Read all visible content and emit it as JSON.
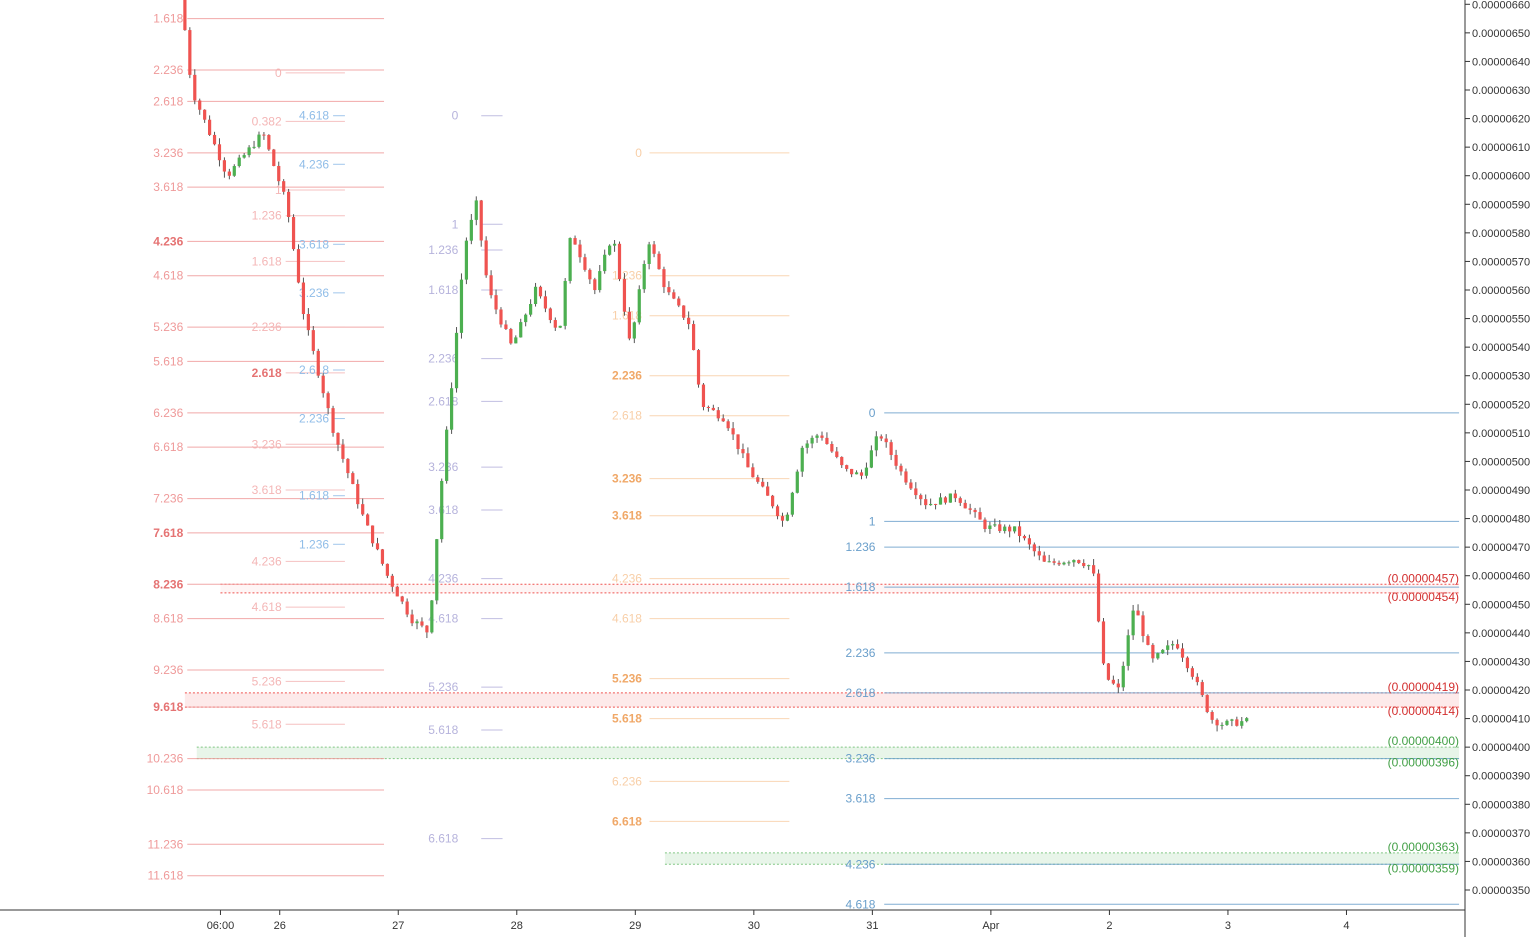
{
  "chart_data": {
    "type": "candlestick",
    "title": "",
    "y_axis": {
      "side": "right",
      "ticks": [
        "0.00000660",
        "0.00000650",
        "0.00000640",
        "0.00000630",
        "0.00000620",
        "0.00000610",
        "0.00000600",
        "0.00000590",
        "0.00000580",
        "0.00000570",
        "0.00000560",
        "0.00000550",
        "0.00000540",
        "0.00000530",
        "0.00000520",
        "0.00000510",
        "0.00000500",
        "0.00000490",
        "0.00000480",
        "0.00000470",
        "0.00000460",
        "0.00000450",
        "0.00000440",
        "0.00000430",
        "0.00000420",
        "0.00000410",
        "0.00000400",
        "0.00000390",
        "0.00000380",
        "0.00000370",
        "0.00000360",
        "0.00000350"
      ],
      "range": [
        3.43e-06,
        6.615e-06
      ]
    },
    "x_axis": {
      "ticks": [
        {
          "label": "06:00",
          "t": 25.5
        },
        {
          "label": "26",
          "t": 26
        },
        {
          "label": "27",
          "t": 27
        },
        {
          "label": "28",
          "t": 28
        },
        {
          "label": "29",
          "t": 29
        },
        {
          "label": "30",
          "t": 30
        },
        {
          "label": "31",
          "t": 31
        },
        {
          "label": "Apr",
          "t": 32
        },
        {
          "label": "2",
          "t": 33
        },
        {
          "label": "3",
          "t": 34
        },
        {
          "label": "4",
          "t": 35
        }
      ],
      "range": [
        23.64,
        36.0
      ]
    },
    "anchors": [
      {
        "t": 25.2,
        "p": 6.66e-06
      },
      {
        "t": 25.3,
        "p": 6.3e-06
      },
      {
        "t": 25.6,
        "p": 6e-06
      },
      {
        "t": 25.9,
        "p": 6.15e-06
      },
      {
        "t": 26.1,
        "p": 5.9e-06
      },
      {
        "t": 26.25,
        "p": 5.5e-06
      },
      {
        "t": 26.5,
        "p": 5.1e-06
      },
      {
        "t": 26.75,
        "p": 4.8e-06
      },
      {
        "t": 26.95,
        "p": 4.6e-06
      },
      {
        "t": 27.15,
        "p": 4.45e-06
      },
      {
        "t": 27.3,
        "p": 4.4e-06
      },
      {
        "t": 27.4,
        "p": 4.9e-06
      },
      {
        "t": 27.5,
        "p": 5.3e-06
      },
      {
        "t": 27.6,
        "p": 5.75e-06
      },
      {
        "t": 27.7,
        "p": 5.9e-06
      },
      {
        "t": 27.8,
        "p": 5.6e-06
      },
      {
        "t": 28.0,
        "p": 5.4e-06
      },
      {
        "t": 28.2,
        "p": 5.6e-06
      },
      {
        "t": 28.4,
        "p": 5.45e-06
      },
      {
        "t": 28.5,
        "p": 5.8e-06
      },
      {
        "t": 28.7,
        "p": 5.6e-06
      },
      {
        "t": 28.85,
        "p": 5.8e-06
      },
      {
        "t": 29.0,
        "p": 5.4e-06
      },
      {
        "t": 29.15,
        "p": 5.78e-06
      },
      {
        "t": 29.3,
        "p": 5.6e-06
      },
      {
        "t": 29.5,
        "p": 5.48e-06
      },
      {
        "t": 29.6,
        "p": 5.2e-06
      },
      {
        "t": 29.8,
        "p": 5.15e-06
      },
      {
        "t": 30.0,
        "p": 4.97e-06
      },
      {
        "t": 30.2,
        "p": 4.85e-06
      },
      {
        "t": 30.3,
        "p": 4.78e-06
      },
      {
        "t": 30.45,
        "p": 5.05e-06
      },
      {
        "t": 30.6,
        "p": 5.1e-06
      },
      {
        "t": 30.8,
        "p": 4.97e-06
      },
      {
        "t": 30.95,
        "p": 4.95e-06
      },
      {
        "t": 31.1,
        "p": 5.1e-06
      },
      {
        "t": 31.3,
        "p": 4.95e-06
      },
      {
        "t": 31.5,
        "p": 4.85e-06
      },
      {
        "t": 31.75,
        "p": 4.88e-06
      },
      {
        "t": 32.0,
        "p": 4.77e-06
      },
      {
        "t": 32.25,
        "p": 4.76e-06
      },
      {
        "t": 32.5,
        "p": 4.64e-06
      },
      {
        "t": 32.75,
        "p": 4.66e-06
      },
      {
        "t": 32.9,
        "p": 4.63e-06
      },
      {
        "t": 33.0,
        "p": 4.25e-06
      },
      {
        "t": 33.12,
        "p": 4.2e-06
      },
      {
        "t": 33.25,
        "p": 4.5e-06
      },
      {
        "t": 33.4,
        "p": 4.3e-06
      },
      {
        "t": 33.6,
        "p": 4.37e-06
      },
      {
        "t": 33.75,
        "p": 4.25e-06
      },
      {
        "t": 33.9,
        "p": 4.1e-06
      },
      {
        "t": 34.0,
        "p": 4.08e-06
      },
      {
        "t": 34.18,
        "p": 4.09e-06
      }
    ],
    "fib_sets": [
      {
        "name": "fib-a",
        "color": "#ef9a9a",
        "strong": "#e57373",
        "t0": 25.22,
        "t1": 26.88,
        "labelT": 25.22,
        "align": "end",
        "levels": [
          {
            "l": "1.618",
            "p": 6.55e-06,
            "s": false
          },
          {
            "l": "2.236",
            "p": 6.37e-06,
            "s": false
          },
          {
            "l": "2.618",
            "p": 6.26e-06,
            "s": false
          },
          {
            "l": "3.236",
            "p": 6.08e-06,
            "s": false
          },
          {
            "l": "3.618",
            "p": 5.96e-06,
            "s": false
          },
          {
            "l": "4.236",
            "p": 5.77e-06,
            "s": true
          },
          {
            "l": "4.618",
            "p": 5.65e-06,
            "s": false
          },
          {
            "l": "5.236",
            "p": 5.47e-06,
            "s": false
          },
          {
            "l": "5.618",
            "p": 5.35e-06,
            "s": false
          },
          {
            "l": "6.236",
            "p": 5.17e-06,
            "s": false
          },
          {
            "l": "6.618",
            "p": 5.05e-06,
            "s": false
          },
          {
            "l": "7.236",
            "p": 4.87e-06,
            "s": false
          },
          {
            "l": "7.618",
            "p": 4.75e-06,
            "s": true
          },
          {
            "l": "8.236",
            "p": 4.57e-06,
            "s": true
          },
          {
            "l": "8.618",
            "p": 4.45e-06,
            "s": false
          },
          {
            "l": "9.236",
            "p": 4.27e-06,
            "s": false
          },
          {
            "l": "9.618",
            "p": 4.14e-06,
            "s": true
          },
          {
            "l": "10.236",
            "p": 3.96e-06,
            "s": false
          },
          {
            "l": "10.618",
            "p": 3.85e-06,
            "s": false
          },
          {
            "l": "11.236",
            "p": 3.66e-06,
            "s": false
          },
          {
            "l": "11.618",
            "p": 3.55e-06,
            "s": false
          }
        ]
      },
      {
        "name": "fib-b",
        "color": "#f4b6b6",
        "strong": "#e57373",
        "t0": 26.05,
        "t1": 26.55,
        "labelT": 26.05,
        "align": "end",
        "levels": [
          {
            "l": "0",
            "p": 6.36e-06,
            "s": false
          },
          {
            "l": "0.382",
            "p": 6.19e-06,
            "s": false
          },
          {
            "l": "1",
            "p": 5.95e-06,
            "s": false
          },
          {
            "l": "1.236",
            "p": 5.86e-06,
            "s": false
          },
          {
            "l": "1.618",
            "p": 5.7e-06,
            "s": false
          },
          {
            "l": "2.236",
            "p": 5.47e-06,
            "s": false
          },
          {
            "l": "2.618",
            "p": 5.31e-06,
            "s": true
          },
          {
            "l": "3.236",
            "p": 5.06e-06,
            "s": false
          },
          {
            "l": "3.618",
            "p": 4.9e-06,
            "s": false
          },
          {
            "l": "4.236",
            "p": 4.65e-06,
            "s": false
          },
          {
            "l": "4.618",
            "p": 4.49e-06,
            "s": false
          },
          {
            "l": "5.236",
            "p": 4.23e-06,
            "s": false
          },
          {
            "l": "5.618",
            "p": 4.08e-06,
            "s": false
          }
        ]
      },
      {
        "name": "fib-c",
        "color": "#90bde8",
        "strong": "#5b9bd5",
        "t0": 26.45,
        "t1": 26.55,
        "labelT": 26.45,
        "align": "end",
        "levels": [
          {
            "l": "4.618",
            "p": 6.21e-06,
            "s": false
          },
          {
            "l": "4.236",
            "p": 6.04e-06,
            "s": false
          },
          {
            "l": "3.618",
            "p": 5.76e-06,
            "s": false
          },
          {
            "l": "3.236",
            "p": 5.59e-06,
            "s": false
          },
          {
            "l": "2.618",
            "p": 5.32e-06,
            "s": false
          },
          {
            "l": "2.236",
            "p": 5.15e-06,
            "s": false
          },
          {
            "l": "1.618",
            "p": 4.88e-06,
            "s": false
          },
          {
            "l": "1.236",
            "p": 4.71e-06,
            "s": false
          }
        ]
      },
      {
        "name": "fib-d",
        "color": "#b6b3dc",
        "strong": "#8f8ac8",
        "t0": 27.7,
        "t1": 27.88,
        "labelT": 27.54,
        "align": "end",
        "levels": [
          {
            "l": "0",
            "p": 6.21e-06,
            "s": false
          },
          {
            "l": "1",
            "p": 5.83e-06,
            "s": false
          },
          {
            "l": "1.236",
            "p": 5.74e-06,
            "s": false
          },
          {
            "l": "1.618",
            "p": 5.6e-06,
            "s": false
          },
          {
            "l": "2.236",
            "p": 5.36e-06,
            "s": false
          },
          {
            "l": "2.618",
            "p": 5.21e-06,
            "s": false
          },
          {
            "l": "3.236",
            "p": 4.98e-06,
            "s": false
          },
          {
            "l": "3.618",
            "p": 4.83e-06,
            "s": false
          },
          {
            "l": "4.236",
            "p": 4.59e-06,
            "s": false
          },
          {
            "l": "4.618",
            "p": 4.45e-06,
            "s": false
          },
          {
            "l": "5.236",
            "p": 4.21e-06,
            "s": false
          },
          {
            "l": "5.618",
            "p": 4.06e-06,
            "s": false
          },
          {
            "l": "6.618",
            "p": 3.68e-06,
            "s": false
          }
        ]
      },
      {
        "name": "fib-e",
        "color": "#f8cfa8",
        "strong": "#f0a868",
        "t0": 29.12,
        "t1": 30.3,
        "labelT": 29.09,
        "align": "end",
        "levels": [
          {
            "l": "0",
            "p": 6.08e-06,
            "s": false
          },
          {
            "l": "1.236",
            "p": 5.65e-06,
            "s": false
          },
          {
            "l": "1.618",
            "p": 5.51e-06,
            "s": false
          },
          {
            "l": "2.236",
            "p": 5.3e-06,
            "s": true
          },
          {
            "l": "2.618",
            "p": 5.16e-06,
            "s": false
          },
          {
            "l": "3.236",
            "p": 4.94e-06,
            "s": true
          },
          {
            "l": "3.618",
            "p": 4.81e-06,
            "s": true
          },
          {
            "l": "4.236",
            "p": 4.59e-06,
            "s": false
          },
          {
            "l": "4.618",
            "p": 4.45e-06,
            "s": false
          },
          {
            "l": "5.236",
            "p": 4.24e-06,
            "s": true
          },
          {
            "l": "5.618",
            "p": 4.1e-06,
            "s": true
          },
          {
            "l": "6.236",
            "p": 3.88e-06,
            "s": false
          },
          {
            "l": "6.618",
            "p": 3.74e-06,
            "s": true
          }
        ]
      },
      {
        "name": "fib-f",
        "color": "#6a9fcb",
        "strong": "#4a86c0",
        "t0": 31.1,
        "t1": 35.95,
        "labelT": 31.06,
        "align": "end",
        "levels": [
          {
            "l": "0",
            "p": 5.17e-06,
            "s": false
          },
          {
            "l": "1",
            "p": 4.79e-06,
            "s": false
          },
          {
            "l": "1.236",
            "p": 4.7e-06,
            "s": false
          },
          {
            "l": "1.618",
            "p": 4.56e-06,
            "s": false
          },
          {
            "l": "2.236",
            "p": 4.33e-06,
            "s": false
          },
          {
            "l": "2.618",
            "p": 4.19e-06,
            "s": false
          },
          {
            "l": "3.236",
            "p": 3.96e-06,
            "s": false
          },
          {
            "l": "3.618",
            "p": 3.82e-06,
            "s": false
          },
          {
            "l": "4.236",
            "p": 3.59e-06,
            "s": false
          },
          {
            "l": "4.618",
            "p": 3.45e-06,
            "s": false
          }
        ]
      }
    ],
    "zones": [
      {
        "name": "zone-red-upper",
        "t0": 25.5,
        "t1": 35.95,
        "p_top": 4.57e-06,
        "p_bot": 4.54e-06,
        "fill": "rgba(239,83,80,0.06)",
        "line": "#ef5350",
        "tag_color": "#d32f2f",
        "tags": [
          "(0.00000457)",
          "(0.00000454)"
        ]
      },
      {
        "name": "zone-red-lower",
        "t0": 25.2,
        "t1": 35.95,
        "p_top": 4.19e-06,
        "p_bot": 4.14e-06,
        "fill": "rgba(239,83,80,0.12)",
        "line": "#ef5350",
        "tag_color": "#d32f2f",
        "tags": [
          "(0.00000419)",
          "(0.00000414)"
        ]
      },
      {
        "name": "zone-green-upper",
        "t0": 25.3,
        "t1": 35.95,
        "p_top": 4e-06,
        "p_bot": 3.96e-06,
        "fill": "rgba(129,199,132,0.18)",
        "line": "#81c784",
        "tag_color": "#43a047",
        "tags": [
          "(0.00000400)",
          "(0.00000396)"
        ]
      },
      {
        "name": "zone-green-lower",
        "t0": 29.25,
        "t1": 35.95,
        "p_top": 3.63e-06,
        "p_bot": 3.59e-06,
        "fill": "rgba(129,199,132,0.18)",
        "line": "#81c784",
        "tag_color": "#43a047",
        "tags": [
          "(0.00000363)",
          "(0.00000359)"
        ]
      }
    ],
    "colors": {
      "up": "#26a69a",
      "up_body": "#4caf50",
      "down": "#ef5350",
      "wick": "#555555",
      "axis": "#333333",
      "gridline": "#cccccc"
    }
  }
}
